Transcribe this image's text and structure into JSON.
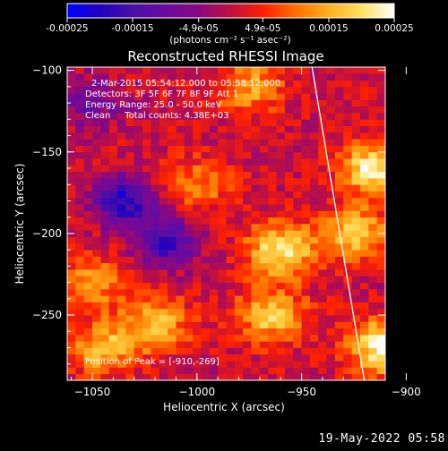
{
  "colorbar": {
    "ticks": [
      "-0.00025",
      "-0.00015",
      "-4.9e-05",
      "4.9e-05",
      "0.00015",
      "0.00025"
    ],
    "tick_values": [
      -0.00025,
      -0.00015,
      -4.9e-05,
      4.9e-05,
      0.00015,
      0.00025
    ],
    "range": [
      -0.00025,
      0.00025
    ],
    "unit_label": "(photons cm⁻² s⁻¹ asec⁻²)",
    "colors": [
      "#0000ff",
      "#2000c0",
      "#4a10a8",
      "#6a0aa0",
      "#8a0880",
      "#c01040",
      "#ff2000",
      "#ff7000",
      "#ffb020",
      "#ffe060",
      "#ffffff"
    ]
  },
  "chart_data": {
    "type": "heatmap",
    "title": "Reconstructed RHESSI Image",
    "xlabel": "Heliocentric X (arcsec)",
    "ylabel": "Heliocentric Y (arcsec)",
    "xlim": [
      -1062,
      -910
    ],
    "ylim": [
      -290,
      -98
    ],
    "xticks": [
      -1050,
      -1000,
      -950,
      -900
    ],
    "yticks": [
      -100,
      -150,
      -200,
      -250
    ],
    "peak": [
      -910,
      -269
    ],
    "limb_line": [
      [
        -945,
        -98
      ],
      [
        -920,
        -290
      ]
    ],
    "hotspots": [
      {
        "x": -915,
        "y": -160,
        "v": 0.9
      },
      {
        "x": -925,
        "y": -200,
        "v": 0.7
      },
      {
        "x": -960,
        "y": -210,
        "v": 0.85
      },
      {
        "x": -965,
        "y": -250,
        "v": 0.7
      },
      {
        "x": -1020,
        "y": -255,
        "v": 0.65
      },
      {
        "x": -1045,
        "y": -270,
        "v": 0.6
      },
      {
        "x": -910,
        "y": -269,
        "v": 1.0
      },
      {
        "x": -1000,
        "y": -170,
        "v": 0.45
      },
      {
        "x": -975,
        "y": -110,
        "v": 0.55
      },
      {
        "x": -1050,
        "y": -230,
        "v": 0.5
      }
    ],
    "coldspots": [
      {
        "x": -1035,
        "y": -180,
        "v": -0.8
      },
      {
        "x": -1015,
        "y": -205,
        "v": -0.7
      },
      {
        "x": -1050,
        "y": -120,
        "v": -0.4
      }
    ]
  },
  "annotations": {
    "time_range": "2-Mar-2015 05:54:12.000 to 05:58:12.000",
    "detectors": "Detectors: 3F 5F 6F 7F 8F 9F Att 1",
    "energy": "Energy Range: 25.0 - 50.0 keV",
    "method": "Clean     Total counts: 4.38E+03",
    "peak_label": "Position of Peak = [-910,-269]"
  },
  "footer": {
    "timestamp": "19-May-2022 05:58"
  }
}
